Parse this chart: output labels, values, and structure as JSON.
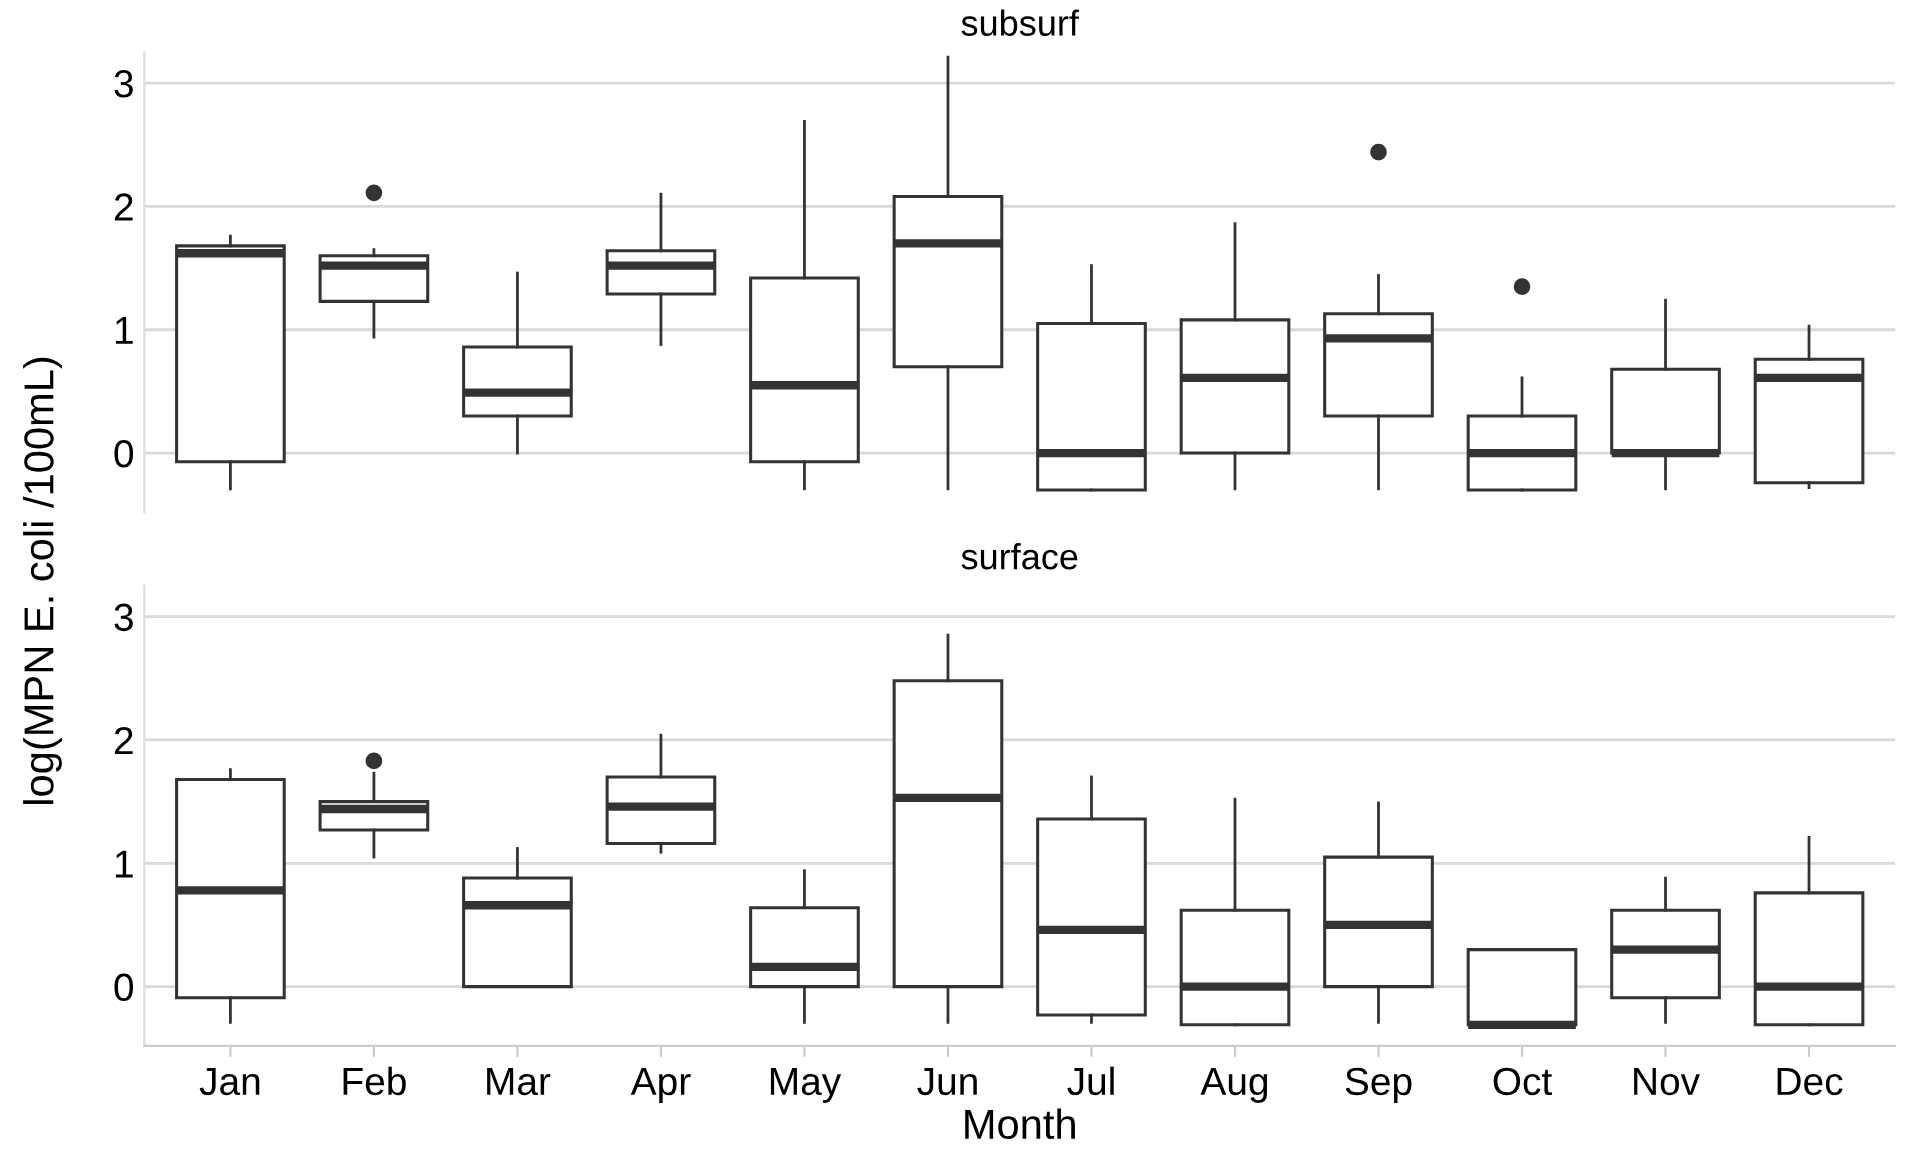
{
  "chart_data": [
    {
      "type": "box",
      "title": "subsurf",
      "ylabel": "log(MPN E. coli /100mL)",
      "categories": [
        null,
        null,
        null,
        null,
        null,
        null,
        null,
        null,
        null,
        null,
        null,
        null
      ],
      "ylim": [
        -0.48,
        3.25
      ],
      "yticks": [
        0,
        1,
        2,
        3
      ],
      "grid": "y",
      "tick_labels": "y",
      "color": "#333333",
      "boxes": [
        {
          "low": -0.29,
          "q1": -0.07,
          "median": 1.62,
          "q3": 1.68,
          "high": 1.76
        },
        {
          "low": 0.94,
          "q1": 1.23,
          "median": 1.52,
          "q3": 1.6,
          "high": 1.65,
          "outliers": [
            2.11
          ]
        },
        {
          "low": 0,
          "q1": 0.3,
          "median": 0.49,
          "q3": 0.86,
          "high": 1.46
        },
        {
          "low": 0.88,
          "q1": 1.29,
          "median": 1.52,
          "q3": 1.64,
          "high": 2.1
        },
        {
          "low": -0.29,
          "q1": -0.07,
          "median": 0.55,
          "q3": 1.42,
          "high": 2.69
        },
        {
          "low": -0.29,
          "q1": 0.7,
          "median": 1.7,
          "q3": 2.08,
          "high": 3.21
        },
        {
          "low": -0.3,
          "q1": -0.3,
          "median": 0,
          "q3": 1.05,
          "high": 1.52
        },
        {
          "low": -0.29,
          "q1": 0,
          "median": 0.61,
          "q3": 1.08,
          "high": 1.86
        },
        {
          "low": -0.29,
          "q1": 0.3,
          "median": 0.93,
          "q3": 1.13,
          "high": 1.44,
          "outliers": [
            2.44
          ]
        },
        {
          "low": -0.3,
          "q1": -0.3,
          "median": 0,
          "q3": 0.3,
          "high": 0.61,
          "outliers": [
            1.35
          ]
        },
        {
          "low": -0.29,
          "q1": 0,
          "median": 0,
          "q3": 0.68,
          "high": 1.24
        },
        {
          "low": -0.28,
          "q1": -0.24,
          "median": 0.61,
          "q3": 0.76,
          "high": 1.03
        }
      ]
    },
    {
      "type": "box",
      "title": "surface",
      "xlabel": "Month",
      "categories": [
        "Jan",
        "Feb",
        "Mar",
        "Apr",
        "May",
        "Jun",
        "Jul",
        "Aug",
        "Sep",
        "Oct",
        "Nov",
        "Dec"
      ],
      "ylim": [
        -0.48,
        3.25
      ],
      "yticks": [
        0,
        1,
        2,
        3
      ],
      "grid": "y",
      "color": "#333333",
      "boxes": [
        {
          "low": -0.29,
          "q1": -0.09,
          "median": 0.78,
          "q3": 1.68,
          "high": 1.76
        },
        {
          "low": 1.05,
          "q1": 1.27,
          "median": 1.44,
          "q3": 1.5,
          "high": 1.73,
          "outliers": [
            1.83
          ]
        },
        {
          "low": 0,
          "q1": 0,
          "median": 0.66,
          "q3": 0.88,
          "high": 1.12
        },
        {
          "low": 1.09,
          "q1": 1.16,
          "median": 1.46,
          "q3": 1.7,
          "high": 2.04
        },
        {
          "low": -0.29,
          "q1": 0,
          "median": 0.16,
          "q3": 0.64,
          "high": 0.94
        },
        {
          "low": -0.29,
          "q1": 0,
          "median": 1.53,
          "q3": 2.48,
          "high": 2.85
        },
        {
          "low": -0.29,
          "q1": -0.23,
          "median": 0.46,
          "q3": 1.36,
          "high": 1.7
        },
        {
          "low": -0.31,
          "q1": -0.31,
          "median": 0,
          "q3": 0.62,
          "high": 1.52
        },
        {
          "low": -0.29,
          "q1": 0,
          "median": 0.5,
          "q3": 1.05,
          "high": 1.49
        },
        {
          "low": -0.31,
          "q1": -0.31,
          "median": -0.31,
          "q3": 0.3,
          "high": 0.3
        },
        {
          "low": -0.29,
          "q1": -0.09,
          "median": 0.3,
          "q3": 0.62,
          "high": 0.88
        },
        {
          "low": -0.31,
          "q1": -0.31,
          "median": 0,
          "q3": 0.76,
          "high": 1.21
        }
      ]
    }
  ]
}
